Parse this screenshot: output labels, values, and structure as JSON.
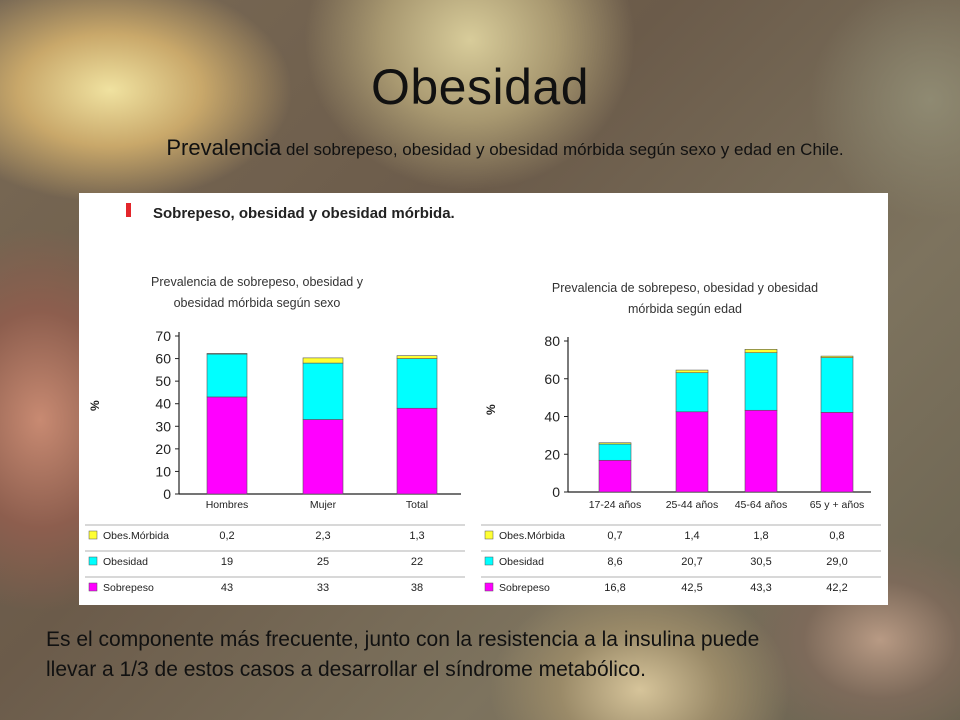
{
  "slide": {
    "title": "Obesidad",
    "subtitle_lead": "Prevalencia",
    "subtitle_rest": " del sobrepeso, obesidad y obesidad mórbida según sexo y edad en Chile.",
    "footer_line1": "Es el componente más frecuente, junto con la resistencia a la insulina puede",
    "footer_line2": "llevar a 1/3 de estos casos a desarrollar el síndrome metabólico."
  },
  "panel": {
    "heading": "Sobrepeso, obesidad y obesidad mórbida.",
    "heading_marker_color": "#e3262b"
  },
  "colors": {
    "sobrepeso": "#ff00ff",
    "obesidad": "#00ffff",
    "morbida": "#ffff33",
    "axis": "#222222"
  },
  "chart_data": [
    {
      "type": "bar",
      "stacked": true,
      "title_line1": "Prevalencia de sobrepeso, obesidad y",
      "title_line2": "obesidad mórbida según sexo",
      "ylabel": "%",
      "ylim": [
        0,
        70
      ],
      "yticks": [
        0,
        10,
        20,
        30,
        40,
        50,
        60,
        70
      ],
      "categories": [
        "Hombres",
        "Mujer",
        "Total"
      ],
      "series": [
        {
          "name": "Sobrepeso",
          "key": "sobrepeso",
          "values": [
            43,
            33,
            38
          ],
          "labels": [
            "43",
            "33",
            "38"
          ]
        },
        {
          "name": "Obesidad",
          "key": "obesidad",
          "values": [
            19,
            25,
            22
          ],
          "labels": [
            "19",
            "25",
            "22"
          ]
        },
        {
          "name": "Obes.Mórbida",
          "key": "morbida",
          "values": [
            0.2,
            2.3,
            1.3
          ],
          "labels": [
            "0,2",
            "2,3",
            "1,3"
          ]
        }
      ]
    },
    {
      "type": "bar",
      "stacked": true,
      "title_line1": "Prevalencia de sobrepeso, obesidad y obesidad",
      "title_line2": "mórbida según edad",
      "ylabel": "%",
      "ylim": [
        0,
        80
      ],
      "yticks": [
        0,
        20,
        40,
        60,
        80
      ],
      "categories": [
        "17-24 años",
        "25-44 años",
        "45-64 años",
        "65 y + años"
      ],
      "series": [
        {
          "name": "Sobrepeso",
          "key": "sobrepeso",
          "values": [
            16.8,
            42.5,
            43.3,
            42.2
          ],
          "labels": [
            "16,8",
            "42,5",
            "43,3",
            "42,2"
          ]
        },
        {
          "name": "Obesidad",
          "key": "obesidad",
          "values": [
            8.6,
            20.7,
            30.5,
            29.0
          ],
          "labels": [
            "8,6",
            "20,7",
            "30,5",
            "29,0"
          ]
        },
        {
          "name": "Obes.Mórbida",
          "key": "morbida",
          "values": [
            0.7,
            1.4,
            1.8,
            0.8
          ],
          "labels": [
            "0,7",
            "1,4",
            "1,8",
            "0,8"
          ]
        }
      ]
    }
  ]
}
